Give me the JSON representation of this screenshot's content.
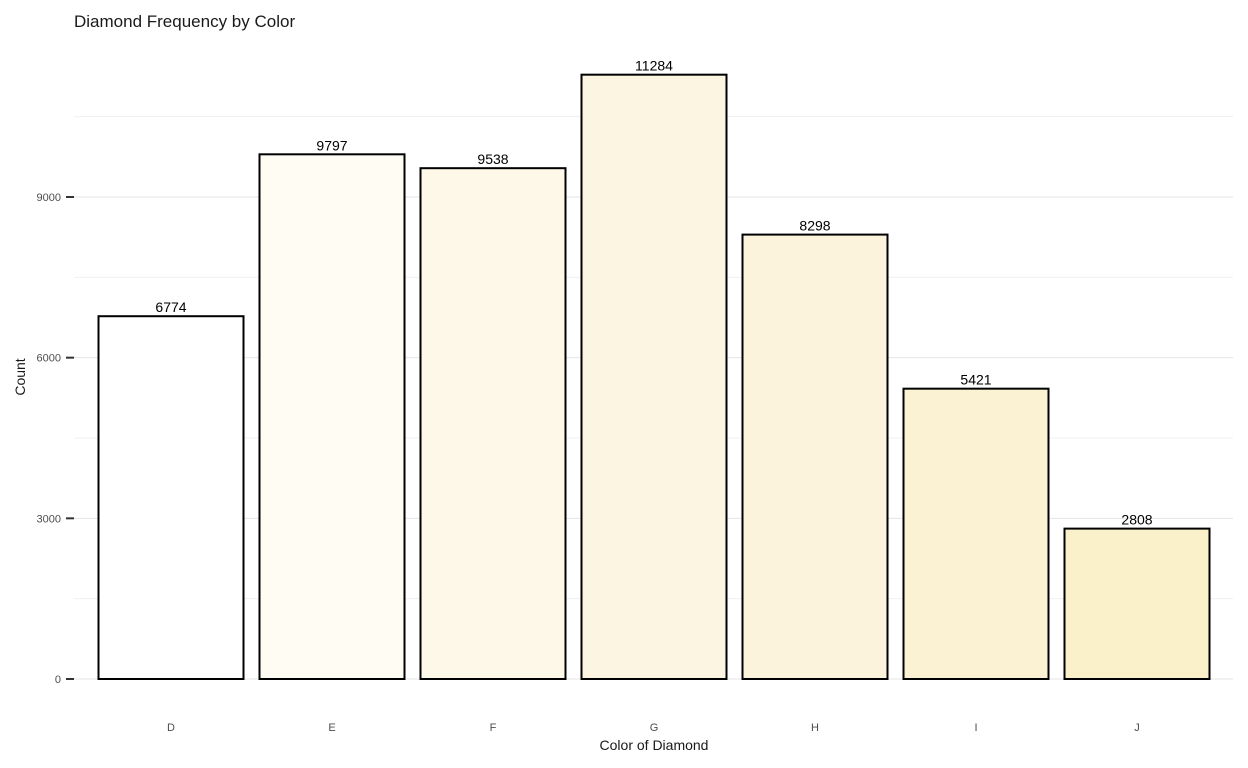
{
  "chart_data": {
    "type": "bar",
    "title": "Diamond Frequency by Color",
    "xlabel": "Color of Diamond",
    "ylabel": "Count",
    "categories": [
      "D",
      "E",
      "F",
      "G",
      "H",
      "I",
      "J"
    ],
    "values": [
      6774,
      9797,
      9538,
      11284,
      8298,
      5421,
      2808
    ],
    "data_labels": [
      "6774",
      "9797",
      "9538",
      "11284",
      "8298",
      "5421",
      "2808"
    ],
    "y_ticks": [
      0,
      3000,
      6000,
      9000
    ],
    "y_tick_labels": [
      "0",
      "3000",
      "6000",
      "9000"
    ],
    "ylim": [
      0,
      11848
    ],
    "grid": true,
    "legend": "none",
    "bar_colors": [
      "#ffffff",
      "#fffcf3",
      "#fdf8e8",
      "#fcf5e1",
      "#fbf3db",
      "#faf2d2",
      "#faf0ca"
    ],
    "bar_outline": "#000000"
  }
}
